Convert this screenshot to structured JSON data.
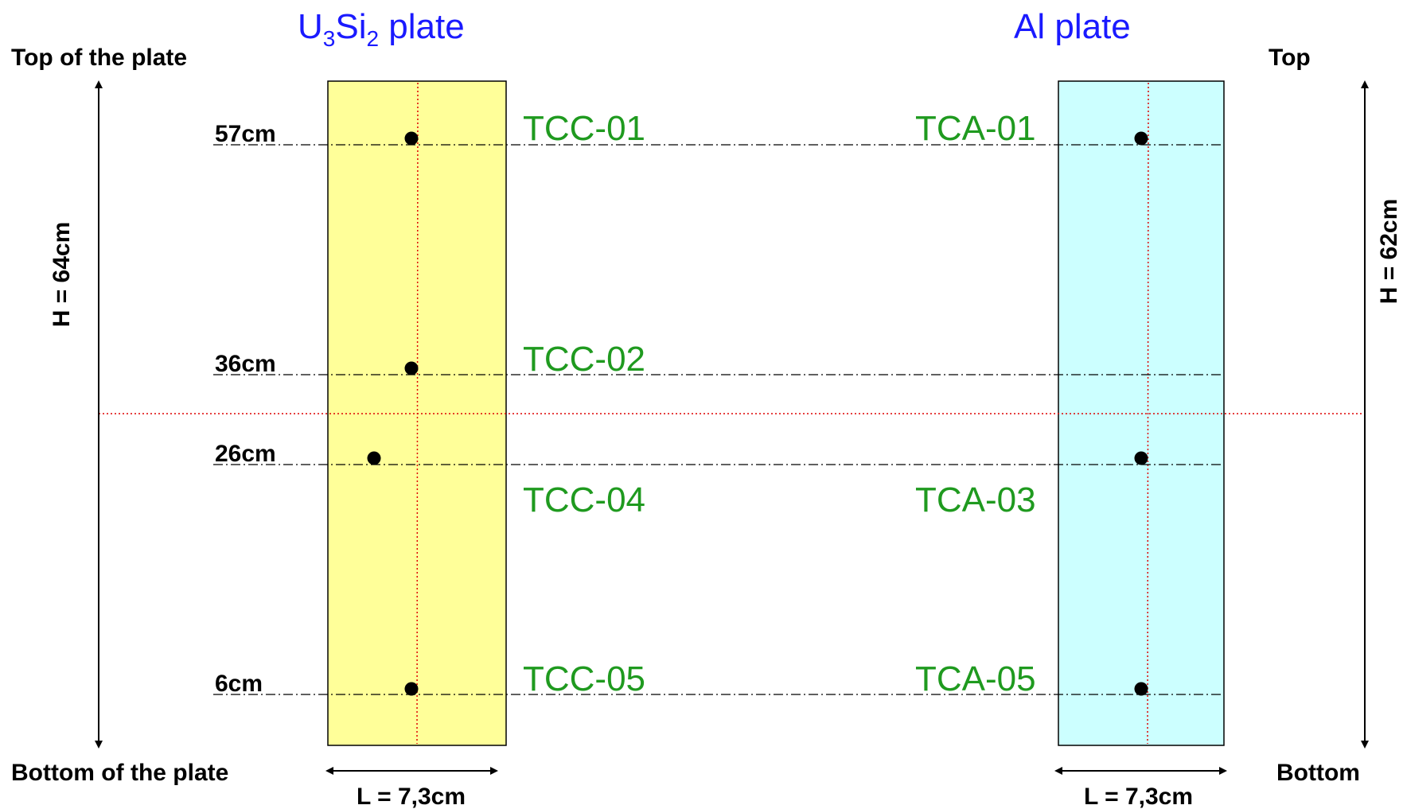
{
  "colors": {
    "u3si2_plate_fill": "#ffff99",
    "al_plate_fill": "#ccffff",
    "sensor_label": "#1f9a1f",
    "title": "#1a1aff",
    "midline": "#dd0000"
  },
  "u3si2": {
    "title_main_1": "U",
    "title_sub_1": "3",
    "title_main_2": "Si",
    "title_sub_2": "2",
    "title_main_3": " plate",
    "top_label": "Top of the plate",
    "bottom_label": "Bottom of the plate",
    "height_label": "H = 64cm",
    "width_label": "L = 7,3cm"
  },
  "al": {
    "title": "Al plate",
    "top_label": "Top",
    "bottom_label": "Bottom",
    "height_label": "H = 62cm",
    "width_label": "L = 7,3cm"
  },
  "levels": [
    {
      "height_label": "57cm",
      "left_sensor": "TCC-01",
      "right_sensor": "TCA-01"
    },
    {
      "height_label": "36cm",
      "left_sensor": "TCC-02",
      "right_sensor": ""
    },
    {
      "height_label": "26cm",
      "left_sensor": "TCC-04",
      "right_sensor": "TCA-03"
    },
    {
      "height_label": "6cm",
      "left_sensor": "TCC-05",
      "right_sensor": "TCA-05"
    }
  ]
}
